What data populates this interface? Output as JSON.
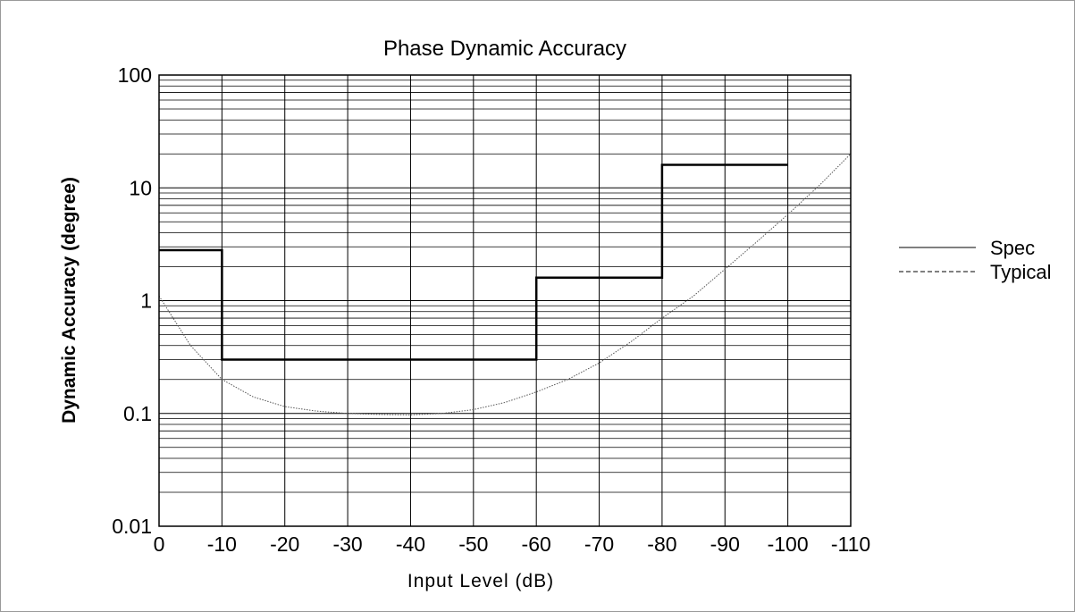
{
  "chart_data": {
    "type": "line",
    "title": "Phase Dynamic Accuracy",
    "xlabel": "Input Level (dB)",
    "ylabel": "Dynamic Accuracy (degree)",
    "y_scale": "log",
    "xlim": [
      0,
      -110
    ],
    "ylim": [
      0.01,
      100
    ],
    "x_ticks": [
      0,
      -10,
      -20,
      -30,
      -40,
      -50,
      -60,
      -70,
      -80,
      -90,
      -100,
      -110
    ],
    "x_tick_labels": [
      "0",
      "-10",
      "-20",
      "-30",
      "-40",
      "-50",
      "-60",
      "-70",
      "-80",
      "-90",
      "-100",
      "-110"
    ],
    "y_ticks": [
      0.01,
      0.1,
      1,
      10,
      100
    ],
    "y_tick_labels": [
      "0.01",
      "0.1",
      "1",
      "10",
      "100"
    ],
    "grid": true,
    "legend_position": "right",
    "series": [
      {
        "name": "Spec",
        "style": "solid",
        "color": "#000000",
        "x": [
          0,
          -10,
          -10,
          -60,
          -60,
          -80,
          -80,
          -100
        ],
        "y": [
          2.8,
          2.8,
          0.3,
          0.3,
          1.6,
          1.6,
          16,
          16
        ]
      },
      {
        "name": "Typical",
        "style": "dotted",
        "color": "#555555",
        "x": [
          0,
          -5,
          -10,
          -15,
          -20,
          -25,
          -30,
          -35,
          -40,
          -45,
          -50,
          -55,
          -60,
          -65,
          -70,
          -75,
          -80,
          -85,
          -90,
          -95,
          -100,
          -105,
          -110
        ],
        "y": [
          1.1,
          0.4,
          0.2,
          0.14,
          0.115,
          0.105,
          0.1,
          0.098,
          0.097,
          0.1,
          0.108,
          0.125,
          0.155,
          0.2,
          0.28,
          0.43,
          0.7,
          1.1,
          1.9,
          3.3,
          5.8,
          10.5,
          20
        ]
      }
    ]
  }
}
